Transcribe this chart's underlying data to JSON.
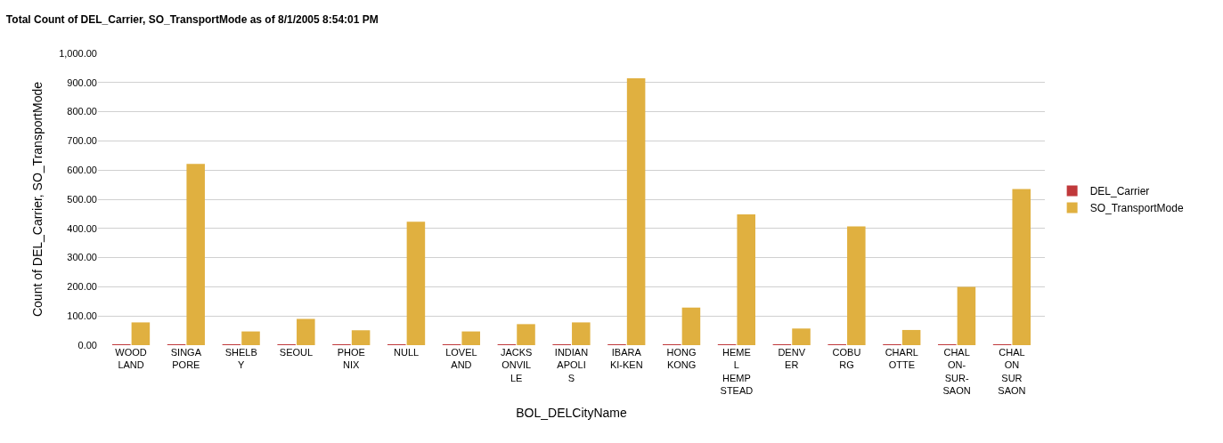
{
  "chart_data": {
    "type": "bar",
    "title": "Total Count of DEL_Carrier, SO_TransportMode as of 8/1/2005 8:54:01 PM",
    "xlabel": "BOL_DELCityName",
    "ylabel": "Count of DEL_Carrier, SO_TransportMode",
    "categories": [
      "WOOD\nLAND",
      "SINGA\nPORE",
      "SHELB\nY",
      "SEOUL",
      "PHOE\nNIX",
      "NULL",
      "LOVEL\nAND",
      "JACKS\nONVIL\nLE",
      "INDIAN\nAPOLI\nS",
      "IBARA\nKI-KEN",
      "HONG\nKONG",
      "HEME\nL\nHEMP\nSTEAD",
      "DENV\nER",
      "COBU\nRG",
      "CHARL\nOTTE",
      "CHAL\nON-\nSUR-\nSAON",
      "CHAL\nON\nSUR\nSAON"
    ],
    "series": [
      {
        "name": "DEL_Carrier",
        "color": "#c0393b",
        "values": [
          3,
          1,
          1,
          1,
          3,
          1,
          3,
          3,
          1,
          1,
          1,
          1,
          3,
          1,
          3,
          1,
          1
        ]
      },
      {
        "name": "SO_TransportMode",
        "color": "#e0b040",
        "values": [
          78,
          621,
          47,
          90,
          51,
          423,
          47,
          72,
          78,
          915,
          129,
          448,
          57,
          407,
          52,
          200,
          535
        ]
      }
    ],
    "ylim": [
      0,
      1000
    ],
    "yticks": [
      {
        "value": 0,
        "label": "0.00"
      },
      {
        "value": 100,
        "label": "100.00"
      },
      {
        "value": 200,
        "label": "200.00"
      },
      {
        "value": 300,
        "label": "300.00"
      },
      {
        "value": 400,
        "label": "400.00"
      },
      {
        "value": 500,
        "label": "500.00"
      },
      {
        "value": 600,
        "label": "600.00"
      },
      {
        "value": 700,
        "label": "700.00"
      },
      {
        "value": 800,
        "label": "800.00"
      },
      {
        "value": 900,
        "label": "900.00"
      },
      {
        "value": 1000,
        "label": "1,000.00"
      }
    ],
    "grid": "y",
    "legend": "right"
  }
}
